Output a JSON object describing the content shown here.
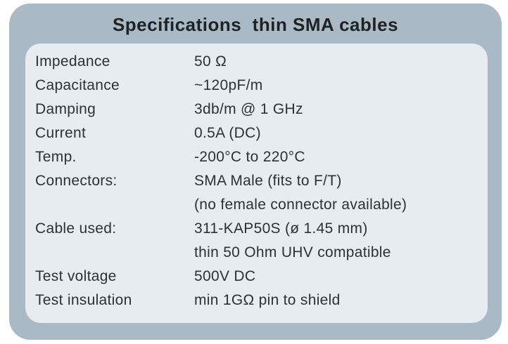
{
  "card": {
    "title": "Specifications  thin SMA cables",
    "colors": {
      "card_bg": "#aab9c6",
      "panel_bg": "#e7ecf1",
      "title_text": "#1e2224",
      "body_text": "#2e3133"
    },
    "rows": [
      {
        "label": "Impedance",
        "value": "50 Ω"
      },
      {
        "label": "Capacitance",
        "value": "~120pF/m"
      },
      {
        "label": "Damping",
        "value": "3db/m @ 1 GHz"
      },
      {
        "label": "Current",
        "value": "0.5A (DC)"
      },
      {
        "label": "Temp.",
        "value": "-200°C to 220°C"
      },
      {
        "label": "Connectors:",
        "value": "SMA Male (fits to F/T)"
      },
      {
        "label": "",
        "value": "(no female connector available)"
      },
      {
        "label": "Cable used:",
        "value": "311-KAP50S (ø 1.45 mm)"
      },
      {
        "label": "",
        "value": "thin 50 Ohm UHV compatible"
      },
      {
        "label": "Test voltage",
        "value": "500V DC"
      },
      {
        "label": "Test insulation",
        "value": "min 1GΩ pin to shield"
      }
    ]
  }
}
